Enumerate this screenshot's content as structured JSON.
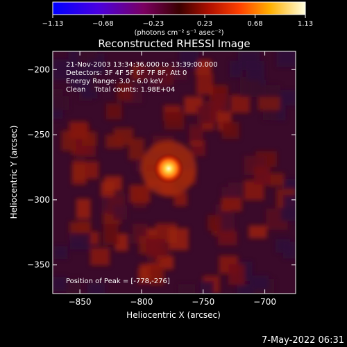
{
  "chart_data": {
    "type": "heatmap",
    "title": "Reconstructed RHESSI Image",
    "xlabel": "Heliocentric X (arcsec)",
    "ylabel": "Heliocentric Y (arcsec)",
    "xlim": [
      -872,
      -675
    ],
    "ylim": [
      -372,
      -186
    ],
    "xticks": [
      -850,
      -800,
      -750,
      -700
    ],
    "yticks": [
      -200,
      -250,
      -300,
      -350
    ],
    "colorbar": {
      "ticks": [
        -1.13,
        -0.68,
        -0.23,
        0.23,
        0.68,
        1.13
      ],
      "tick_labels": [
        "-1.13",
        "-0.68",
        "-0.23",
        "0.23",
        "0.68",
        "1.13"
      ],
      "label": "(photons cm⁻² s⁻¹ asec⁻²)",
      "range": [
        -1.13,
        1.13
      ]
    },
    "peak": {
      "x": -778,
      "y": -276,
      "value": 1.13
    },
    "annotations": [
      "21-Nov-2003 13:34:36.000 to 13:39:00.000",
      "Detectors: 3F 4F 5F 6F 7F 8F, Att 0",
      "Energy Range: 3.0 - 6.0 keV",
      "Clean    Total counts: 1.98E+04"
    ],
    "peak_label": "Position of Peak = [-778,-276]"
  },
  "footer": {
    "timestamp": "7-May-2022 06:31"
  }
}
